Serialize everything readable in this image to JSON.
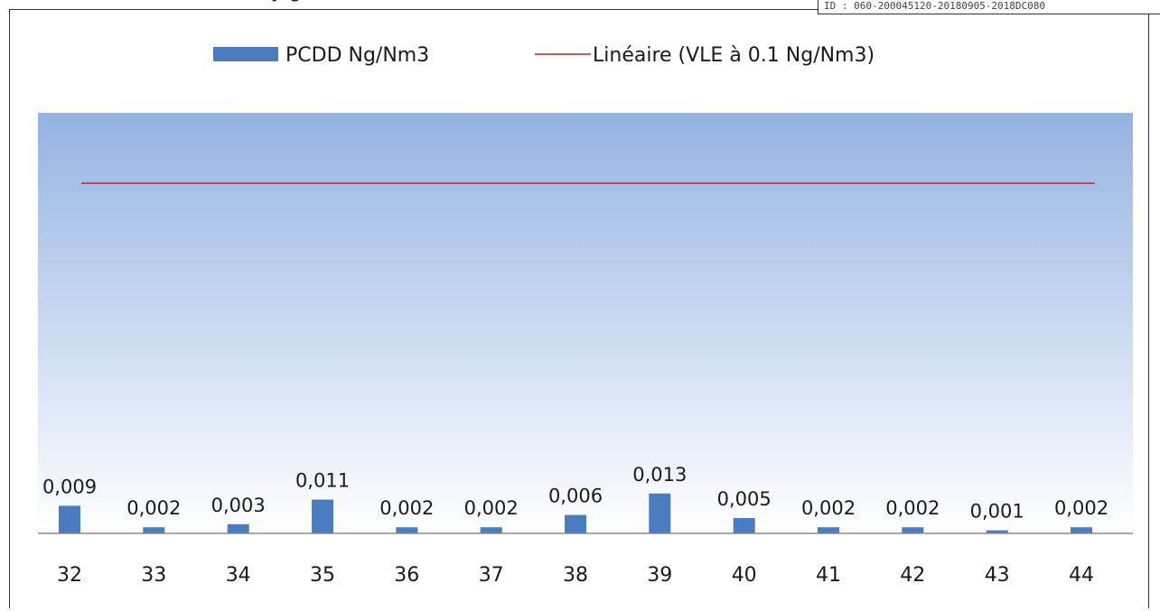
{
  "header": {
    "title_fragment": "y                                                g",
    "corner_id": "ID : 060-200045120-20180905-2018DC080"
  },
  "chart_data": {
    "type": "bar",
    "categories": [
      "32",
      "33",
      "34",
      "35",
      "36",
      "37",
      "38",
      "39",
      "40",
      "41",
      "42",
      "43",
      "44"
    ],
    "series": [
      {
        "name": "PCDD Ng/Nm3",
        "type": "bar",
        "color": "#4a7cc0",
        "values": [
          0.009,
          0.002,
          0.003,
          0.011,
          0.002,
          0.002,
          0.006,
          0.013,
          0.005,
          0.002,
          0.002,
          0.001,
          0.002
        ],
        "value_labels": [
          "0,009",
          "0,002",
          "0,003",
          "0,011",
          "0,002",
          "0,002",
          "0,006",
          "0,013",
          "0,005",
          "0,002",
          "0,002",
          "0,001",
          "0,002"
        ]
      },
      {
        "name": "Linéaire (VLE à 0.1 Ng/Nm3)",
        "type": "line",
        "color": "#c0262d",
        "values": [
          0.1,
          0.1,
          0.1,
          0.1,
          0.1,
          0.1,
          0.1,
          0.1,
          0.1,
          0.1,
          0.1,
          0.1,
          0.1
        ]
      }
    ],
    "ylim": [
      0,
      0.12
    ],
    "legend_position": "top",
    "grid": false,
    "background_gradient": [
      "#94b3e2",
      "#ffffff"
    ]
  }
}
